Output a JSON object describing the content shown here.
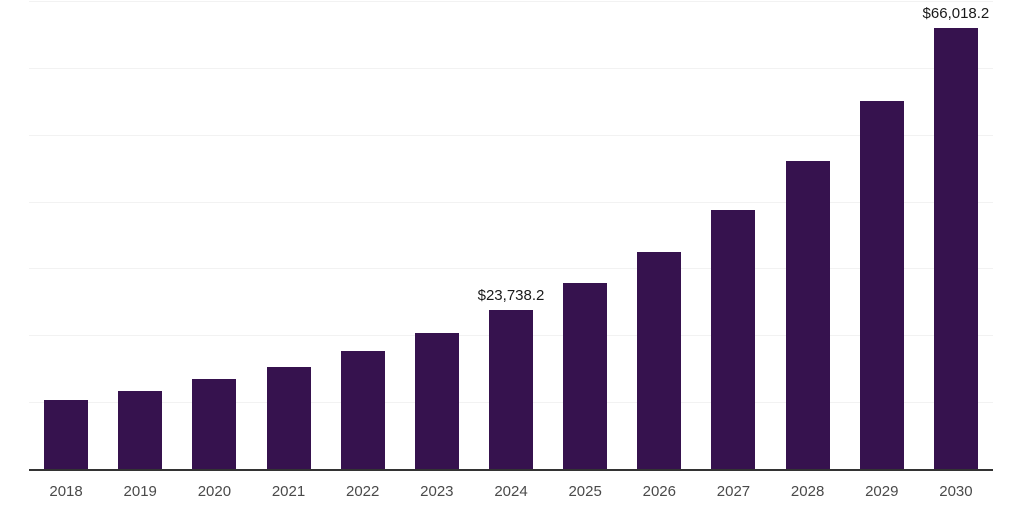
{
  "chart_data": {
    "type": "bar",
    "title": "",
    "xlabel": "",
    "ylabel": "",
    "categories": [
      "2018",
      "2019",
      "2020",
      "2021",
      "2022",
      "2023",
      "2024",
      "2025",
      "2026",
      "2027",
      "2028",
      "2029",
      "2030"
    ],
    "values": [
      10300,
      11600,
      13400,
      15200,
      17600,
      20300,
      23738.2,
      27800,
      32500,
      38700,
      46000,
      55100,
      66018.2
    ],
    "data_labels": [
      null,
      null,
      null,
      null,
      null,
      null,
      "$23,738.2",
      null,
      null,
      null,
      null,
      null,
      "$66,018.2"
    ],
    "ylim": [
      0,
      70000
    ],
    "grid_step": 10000,
    "grid": true,
    "legend": false,
    "y_axis_labels_visible": false,
    "bar_color": "#36124E",
    "background_color": "#ffffff",
    "gridline_color": "#f2f2f2",
    "axis_line_color": "#333333",
    "tick_label_color": "#4a4a4a",
    "data_label_color": "#1a1a1a"
  }
}
